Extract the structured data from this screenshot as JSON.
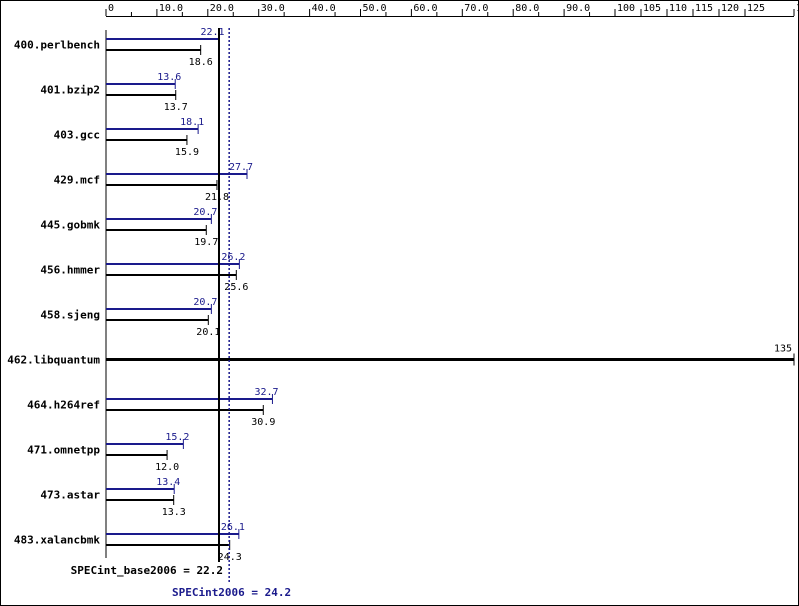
{
  "colors": {
    "peak": "#1a1a8c",
    "base": "#000000",
    "frame": "#000000",
    "background": "#ffffff"
  },
  "chart_data": {
    "type": "bar",
    "orientation": "horizontal",
    "xlim": [
      0,
      135
    ],
    "ticks": [
      "0",
      "10.0",
      "20.0",
      "30.0",
      "40.0",
      "50.0",
      "60.0",
      "70.0",
      "80.0",
      "90.0",
      "100",
      "105",
      "110",
      "115",
      "120",
      "125",
      "135"
    ],
    "tick_values": [
      0,
      10,
      20,
      30,
      40,
      50,
      60,
      70,
      80,
      90,
      100,
      105,
      110,
      115,
      120,
      125,
      135
    ],
    "categories": [
      "400.perlbench",
      "401.bzip2",
      "403.gcc",
      "429.mcf",
      "445.gobmk",
      "456.hmmer",
      "458.sjeng",
      "462.libquantum",
      "464.h264ref",
      "471.omnetpp",
      "473.astar",
      "483.xalancbmk"
    ],
    "series": [
      {
        "key": "peak",
        "values": [
          22.1,
          13.6,
          18.1,
          27.7,
          20.7,
          26.2,
          20.7,
          135,
          32.7,
          15.2,
          13.4,
          26.1
        ],
        "labels": [
          "22.1",
          "13.6",
          "18.1",
          "27.7",
          "20.7",
          "26.2",
          "20.7",
          "135",
          "32.7",
          "15.2",
          "13.4",
          "26.1"
        ]
      },
      {
        "key": "base",
        "values": [
          18.6,
          13.7,
          15.9,
          21.8,
          19.7,
          25.6,
          20.1,
          135,
          30.9,
          12.0,
          13.3,
          24.3
        ],
        "labels": [
          "18.6",
          "13.7",
          "15.9",
          "21.8",
          "19.7",
          "25.6",
          "20.1",
          "135",
          "30.9",
          "12.0",
          "13.3",
          "24.3"
        ]
      }
    ],
    "reference_lines": [
      {
        "key": "base",
        "value": 22.2,
        "label": "SPECint_base2006 = 22.2",
        "style": "solid"
      },
      {
        "key": "peak",
        "value": 24.2,
        "label": "SPECint2006 = 24.2",
        "style": "dotted"
      }
    ],
    "grid": false,
    "legend": "none"
  }
}
